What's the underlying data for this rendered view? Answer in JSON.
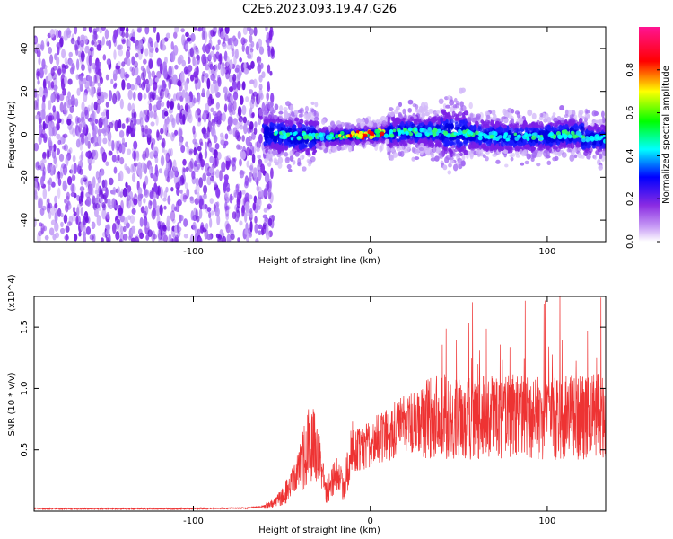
{
  "figure": {
    "title": "C2E6.2023.093.19.47.G26"
  },
  "colors": {
    "snr_line": "#ee3333",
    "axis": "#000000"
  },
  "chart_data": [
    {
      "type": "heatmap",
      "name": "spectrogram",
      "xlabel": "Height of straight line (km)",
      "ylabel": "Frequency (Hz)",
      "xlim": [
        -190,
        133
      ],
      "ylim": [
        -50,
        50
      ],
      "xticks": [
        -100,
        0,
        100
      ],
      "xtick_labels": [
        "-100",
        "0",
        "100"
      ],
      "yticks": [
        -40,
        -20,
        0,
        20,
        40
      ],
      "ytick_labels": [
        "-40",
        "-20",
        "0",
        "20",
        "40"
      ],
      "colorbar": {
        "label": "Normalized spectral amplitude",
        "range": [
          0,
          1
        ],
        "ticks": [
          0.0,
          0.2,
          0.4,
          0.6,
          0.8
        ],
        "tick_labels": [
          "0.0",
          "0.2",
          "0.4",
          "0.6",
          "0.8"
        ],
        "colormap": [
          "#ffffff",
          "#8a2be2",
          "#0000ff",
          "#00ffff",
          "#00ff00",
          "#ffff00",
          "#ff0000",
          "#ff1493"
        ]
      },
      "noise_region_xlim": [
        -190,
        -55
      ],
      "signal_region_xlim": [
        -60,
        133
      ],
      "signal_center_hz": 0
    },
    {
      "type": "line",
      "name": "snr",
      "xlabel": "Height of straight line (km)",
      "ylabel": "SNR (10 * v/v)",
      "y_multiplier": "(x10^4)",
      "xlim": [
        -190,
        133
      ],
      "ylim": [
        0,
        1.75
      ],
      "xticks": [
        -100,
        0,
        100
      ],
      "xtick_labels": [
        "-100",
        "0",
        "100"
      ],
      "yticks": [
        0.5,
        1.0,
        1.5
      ],
      "ytick_labels": [
        "0.5",
        "1.0",
        "1.5"
      ],
      "series": [
        {
          "x": [
            -190,
            -150,
            -100,
            -70,
            -60,
            -55,
            -50,
            -45,
            -40,
            -35,
            -30,
            -25,
            -20,
            -15,
            -10,
            -5,
            0,
            5,
            10,
            15,
            20,
            25,
            30,
            40,
            50,
            60,
            70,
            80,
            90,
            100,
            110,
            120,
            133
          ],
          "y": [
            0.02,
            0.02,
            0.02,
            0.025,
            0.04,
            0.06,
            0.12,
            0.2,
            0.35,
            0.55,
            0.5,
            0.15,
            0.3,
            0.2,
            0.5,
            0.5,
            0.55,
            0.6,
            0.62,
            0.68,
            0.7,
            0.72,
            0.74,
            0.78,
            0.75,
            0.76,
            0.77,
            0.78,
            0.76,
            0.75,
            0.77,
            0.76,
            0.78
          ]
        }
      ]
    }
  ]
}
